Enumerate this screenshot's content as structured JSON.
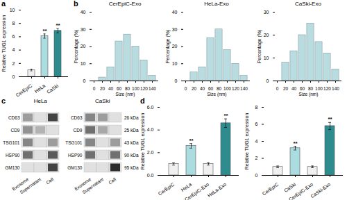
{
  "chart_data": [
    {
      "type": "bar",
      "annotations": [
        "a"
      ],
      "categories": [
        "CerEpiC",
        "HeLa",
        "CaSki"
      ],
      "values": [
        1.0,
        6.1,
        6.9
      ],
      "errors": [
        0.12,
        0.32,
        0.32
      ],
      "colors": [
        "#f0f0f0",
        "#aadce0",
        "#2e8b8e"
      ],
      "ylabel": "Relative TUG1 expression",
      "ylim": [
        0,
        10
      ],
      "yticks": [
        0,
        2,
        4,
        6,
        8,
        10
      ],
      "significance": [
        null,
        "**",
        "**"
      ]
    },
    {
      "type": "bar",
      "annotations": [
        "b"
      ],
      "title": "CerEpiC-Exo",
      "x": [
        20,
        40,
        60,
        80,
        100,
        120,
        140
      ],
      "values": [
        2.0,
        8.0,
        23.0,
        27.0,
        20.0,
        12.0,
        3.0
      ],
      "color": "#b8dce0",
      "xlabel": "Size (nm)",
      "ylabel": "Percentage (%)",
      "xlim": [
        -5,
        155
      ],
      "xticks": [
        0,
        20,
        40,
        60,
        80,
        100,
        120,
        140
      ],
      "ylim": [
        0,
        40
      ],
      "yticks": [
        0,
        10,
        20,
        30,
        40
      ]
    },
    {
      "type": "bar",
      "title": "HeLa-Exo",
      "x": [
        20,
        40,
        60,
        80,
        100,
        120,
        140
      ],
      "values": [
        5.0,
        8.0,
        25.0,
        30.0,
        18.0,
        10.0,
        3.0
      ],
      "color": "#b8dce0",
      "xlabel": "Size (nm)",
      "ylabel": "Percentage (%)",
      "xlim": [
        -5,
        155
      ],
      "xticks": [
        0,
        20,
        40,
        60,
        80,
        100,
        120,
        140
      ],
      "ylim": [
        0,
        40
      ],
      "yticks": [
        0,
        10,
        20,
        30,
        40
      ]
    },
    {
      "type": "bar",
      "title": "CaSki-Exo",
      "x": [
        20,
        40,
        60,
        80,
        100,
        120,
        140
      ],
      "values": [
        8.0,
        13.0,
        20.0,
        25.0,
        17.0,
        12.0,
        5.0
      ],
      "color": "#b8dce0",
      "xlabel": "Size (nm)",
      "ylabel": "Percentage (%)",
      "xlim": [
        -5,
        155
      ],
      "xticks": [
        0,
        20,
        40,
        60,
        80,
        100,
        120,
        140
      ],
      "ylim": [
        0,
        30
      ],
      "yticks": [
        0,
        10,
        20,
        30
      ]
    },
    {
      "type": "heatmap",
      "annotations": [
        "c"
      ],
      "columns": [
        "Exosome",
        "Supernatant",
        "Cell"
      ],
      "zlim": [
        0,
        1
      ],
      "blots": [
        {
          "title": "HeLa",
          "rows": [
            "CD63",
            "CD9",
            "TSG101",
            "HSP90",
            "GM130"
          ],
          "cells": [
            [
              0.3,
              0.0,
              0.7
            ],
            [
              0.35,
              0.2,
              0.0
            ],
            [
              0.4,
              0.0,
              0.3
            ],
            [
              0.5,
              0.0,
              0.6
            ],
            [
              0.0,
              0.0,
              0.7
            ]
          ]
        },
        {
          "title": "CaSki",
          "rows": [
            "CD63",
            "CD9",
            "TSG101",
            "HSP90",
            "GM130"
          ],
          "kda_labels": [
            "26 kDa",
            "25 kDa",
            "43 kDa",
            "90 kDa",
            "95 kDa"
          ],
          "cells": [
            [
              0.4,
              0.3,
              0.0
            ],
            [
              0.5,
              0.25,
              0.0
            ],
            [
              0.4,
              0.0,
              0.3
            ],
            [
              0.5,
              0.0,
              0.5
            ],
            [
              0.0,
              0.0,
              0.8
            ]
          ]
        }
      ]
    },
    {
      "type": "bar",
      "annotations": [
        "d"
      ],
      "categories": [
        "CerEpiC",
        "HeLa",
        "CerEpiC-Exo",
        "HeLa-Exo"
      ],
      "values": [
        1.0,
        2.6,
        1.0,
        4.6
      ],
      "errors": [
        0.1,
        0.2,
        0.1,
        0.38
      ],
      "colors": [
        "#f0f0f0",
        "#aadce0",
        "#f0f0f0",
        "#2e8b8e"
      ],
      "ylabel": "Relative TUG1 expression",
      "ylim": [
        0,
        6
      ],
      "yticks": [
        0,
        2,
        4,
        6
      ],
      "significance": [
        null,
        "**",
        null,
        "**"
      ]
    },
    {
      "type": "bar",
      "categories": [
        "CerEpiC",
        "CaSki",
        "CerEpiC-Exo",
        "CaSki-Exo"
      ],
      "values": [
        1.0,
        3.2,
        1.0,
        5.8
      ],
      "errors": [
        0.1,
        0.22,
        0.1,
        0.42
      ],
      "colors": [
        "#f0f0f0",
        "#aadce0",
        "#f0f0f0",
        "#2e8b8e"
      ],
      "ylabel": "Relative TUG1 expression",
      "ylim": [
        0,
        8
      ],
      "yticks": [
        0,
        2,
        4,
        6,
        8
      ],
      "significance": [
        null,
        "**",
        null,
        "**"
      ]
    }
  ]
}
